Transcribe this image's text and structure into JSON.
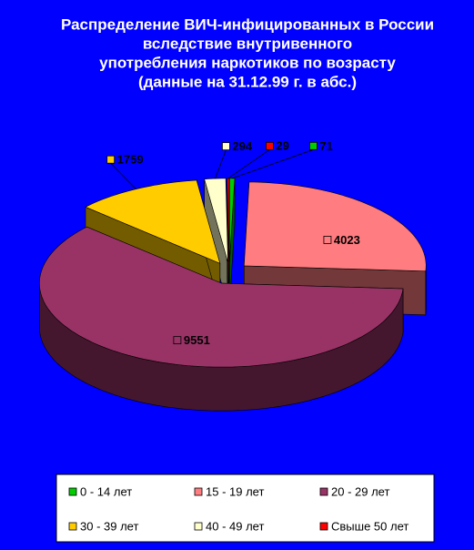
{
  "chart_data": {
    "type": "pie3d",
    "title_lines": [
      "Распределение ВИЧ-инфицированных в России",
      "вследствие внутривенного",
      "употребления наркотиков по возрасту",
      "(данные на 31.12.99 г. в абс.)"
    ],
    "categories": [
      "0 - 14 лет",
      "15 - 19 лет",
      "20 - 29 лет",
      "30 - 39 лет",
      "40 - 49 лет",
      "Свыше 50 лет"
    ],
    "values": [
      71,
      4023,
      9551,
      1759,
      294,
      29
    ],
    "colors": [
      "#00cc00",
      "#ff7c80",
      "#993366",
      "#ffcc00",
      "#ffffcc",
      "#ff0000"
    ],
    "legend": "bottom"
  }
}
